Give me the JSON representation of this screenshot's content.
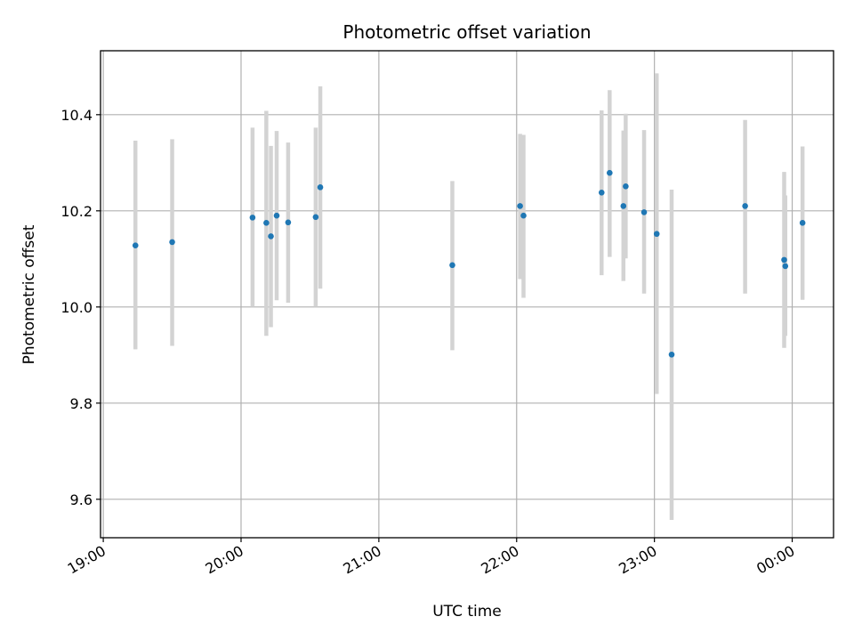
{
  "chart_data": {
    "type": "scatter",
    "title": "Photometric offset variation",
    "xlabel": "UTC time",
    "ylabel": "Photometric offset",
    "grid": true,
    "x_unit": "minutes since 19:00 UTC",
    "xlim": [
      -1.2,
      318
    ],
    "ylim": [
      9.52,
      10.533
    ],
    "x_ticks": [
      {
        "value": 0,
        "label": "19:00"
      },
      {
        "value": 60,
        "label": "20:00"
      },
      {
        "value": 120,
        "label": "21:00"
      },
      {
        "value": 180,
        "label": "22:00"
      },
      {
        "value": 240,
        "label": "23:00"
      },
      {
        "value": 300,
        "label": "00:00"
      }
    ],
    "y_ticks": [
      {
        "value": 9.6,
        "label": "9.6"
      },
      {
        "value": 9.8,
        "label": "9.8"
      },
      {
        "value": 10.0,
        "label": "10.0"
      },
      {
        "value": 10.2,
        "label": "10.2"
      },
      {
        "value": 10.4,
        "label": "10.4"
      }
    ],
    "colors": {
      "point": "#1f77b4",
      "errorbar": "#d3d3d3",
      "grid": "#b0b0b0",
      "axis": "#000000"
    },
    "points": [
      {
        "x": 14.0,
        "y": 10.128,
        "err_low": 9.912,
        "err_high": 10.346
      },
      {
        "x": 30.0,
        "y": 10.135,
        "err_low": 9.919,
        "err_high": 10.349
      },
      {
        "x": 65.0,
        "y": 10.186,
        "err_low": 10.0,
        "err_high": 10.373
      },
      {
        "x": 71.0,
        "y": 10.175,
        "err_low": 9.94,
        "err_high": 10.408
      },
      {
        "x": 73.0,
        "y": 10.147,
        "err_low": 9.958,
        "err_high": 10.335
      },
      {
        "x": 75.5,
        "y": 10.19,
        "err_low": 10.014,
        "err_high": 10.366
      },
      {
        "x": 80.5,
        "y": 10.176,
        "err_low": 10.009,
        "err_high": 10.342
      },
      {
        "x": 92.5,
        "y": 10.187,
        "err_low": 10.0,
        "err_high": 10.373
      },
      {
        "x": 94.5,
        "y": 10.249,
        "err_low": 10.038,
        "err_high": 10.459
      },
      {
        "x": 152.0,
        "y": 10.087,
        "err_low": 9.91,
        "err_high": 10.262
      },
      {
        "x": 181.5,
        "y": 10.21,
        "err_low": 10.058,
        "err_high": 10.36
      },
      {
        "x": 183.0,
        "y": 10.19,
        "err_low": 10.019,
        "err_high": 10.358
      },
      {
        "x": 217.0,
        "y": 10.238,
        "err_low": 10.066,
        "err_high": 10.409
      },
      {
        "x": 220.5,
        "y": 10.279,
        "err_low": 10.104,
        "err_high": 10.451
      },
      {
        "x": 226.5,
        "y": 10.21,
        "err_low": 10.054,
        "err_high": 10.367
      },
      {
        "x": 227.5,
        "y": 10.251,
        "err_low": 10.101,
        "err_high": 10.402
      },
      {
        "x": 235.5,
        "y": 10.197,
        "err_low": 10.028,
        "err_high": 10.368
      },
      {
        "x": 241.0,
        "y": 10.152,
        "err_low": 9.819,
        "err_high": 10.486
      },
      {
        "x": 247.5,
        "y": 9.901,
        "err_low": 9.557,
        "err_high": 10.244
      },
      {
        "x": 279.5,
        "y": 10.21,
        "err_low": 10.028,
        "err_high": 10.389
      },
      {
        "x": 296.5,
        "y": 10.098,
        "err_low": 9.915,
        "err_high": 10.281
      },
      {
        "x": 297.0,
        "y": 10.085,
        "err_low": 9.94,
        "err_high": 10.232
      },
      {
        "x": 304.5,
        "y": 10.175,
        "err_low": 10.015,
        "err_high": 10.334
      }
    ]
  }
}
